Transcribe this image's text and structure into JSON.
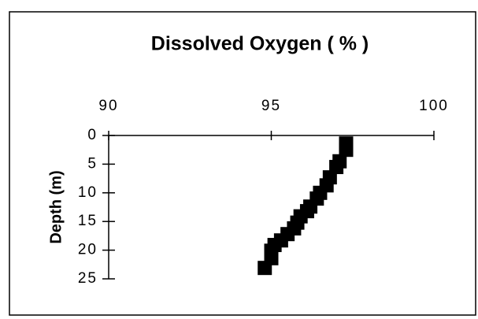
{
  "chart_data": {
    "type": "scatter",
    "title": "Dissolved Oxygen ( % )",
    "y_label": "Depth (m)",
    "series": [
      {
        "name": null,
        "color": "#000000",
        "x": [
          97.3,
          97.3,
          97.1,
          97.0,
          96.8,
          96.7,
          96.5,
          96.4,
          96.2,
          96.1,
          95.9,
          95.8,
          95.7,
          95.5,
          95.3,
          95.1,
          95.0,
          95.0,
          94.8
        ],
        "values": [
          1.4,
          2.5,
          4.5,
          5.5,
          7.3,
          8.7,
          10.0,
          11.0,
          12.4,
          13.2,
          14.1,
          15.2,
          16.2,
          17.2,
          18.3,
          19.1,
          20.1,
          21.4,
          23.1
        ]
      }
    ],
    "xlim": [
      90,
      100
    ],
    "xticks": [
      90,
      95,
      100
    ],
    "ylim": [
      0,
      25
    ],
    "yticks": [
      0,
      5,
      10,
      15,
      20,
      25
    ],
    "y_inverted": true,
    "x_axis_position": "top"
  }
}
